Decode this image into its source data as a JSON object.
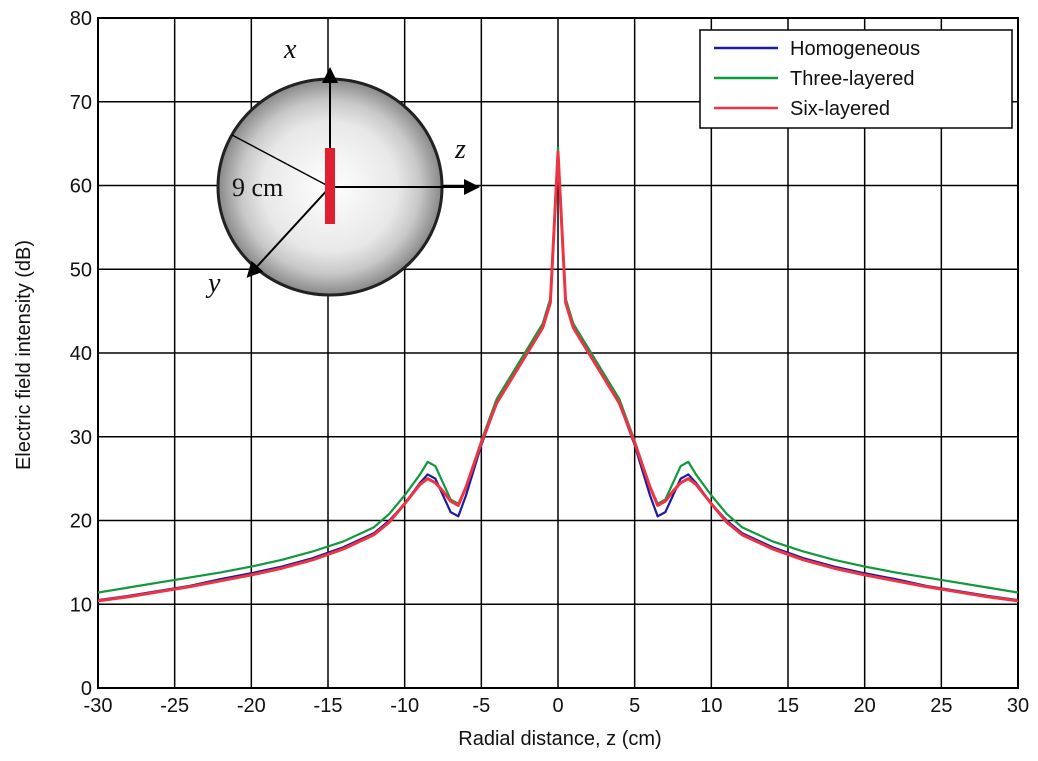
{
  "chart_data": {
    "type": "line",
    "xlabel": "Radial distance, z (cm)",
    "ylabel": "Electric field intensity (dB)",
    "x": [
      -30,
      -28,
      -26,
      -24,
      -22,
      -20,
      -18,
      -16,
      -14,
      -12,
      -11,
      -10,
      -9,
      -8.5,
      -8,
      -7.5,
      -7,
      -6.5,
      -6,
      -5,
      -4,
      -3,
      -2,
      -1,
      -0.5,
      0,
      0.5,
      1,
      2,
      3,
      4,
      5,
      6,
      6.5,
      7,
      7.5,
      8,
      8.5,
      9,
      10,
      11,
      12,
      14,
      16,
      18,
      20,
      22,
      24,
      26,
      28,
      30
    ],
    "series": [
      {
        "name": "Homogeneous",
        "color": "#1c1c9e",
        "values": [
          10.5,
          11,
          11.6,
          12.2,
          13,
          13.7,
          14.5,
          15.5,
          16.8,
          18.5,
          20,
          22,
          24.5,
          25.5,
          25,
          23,
          21,
          20.5,
          23,
          29,
          34,
          37,
          40,
          43,
          46,
          64,
          46,
          43,
          40,
          37,
          34,
          29,
          23,
          20.5,
          21,
          23,
          25,
          25.5,
          24.5,
          22,
          20,
          18.5,
          16.8,
          15.5,
          14.5,
          13.7,
          13,
          12.2,
          11.6,
          11,
          10.5
        ]
      },
      {
        "name": "Three-layered",
        "color": "#10993c",
        "values": [
          11.4,
          12,
          12.6,
          13.2,
          13.8,
          14.5,
          15.3,
          16.3,
          17.5,
          19.2,
          20.8,
          23,
          25.5,
          27,
          26.5,
          24.5,
          22.5,
          22,
          24,
          29.5,
          34.5,
          37.5,
          40.5,
          43.5,
          46.5,
          64.5,
          46.5,
          43.5,
          40.5,
          37.5,
          34.5,
          29.5,
          24,
          22,
          22.5,
          24.5,
          26.5,
          27,
          25.5,
          23,
          20.8,
          19.2,
          17.5,
          16.3,
          15.3,
          14.5,
          13.8,
          13.2,
          12.6,
          12,
          11.4
        ]
      },
      {
        "name": "Six-layered",
        "color": "#ee3344",
        "values": [
          10.4,
          10.9,
          11.5,
          12.1,
          12.8,
          13.5,
          14.3,
          15.3,
          16.6,
          18.3,
          19.8,
          22,
          24.3,
          25,
          24.5,
          23.5,
          22.3,
          21.8,
          24,
          29.3,
          34,
          37,
          40,
          43,
          46,
          64,
          46,
          43,
          40,
          37,
          34,
          29.3,
          24,
          21.8,
          22.3,
          23.5,
          24.5,
          25,
          24.3,
          22,
          19.8,
          18.3,
          16.6,
          15.3,
          14.3,
          13.5,
          12.8,
          12.1,
          11.5,
          10.9,
          10.4
        ]
      }
    ],
    "xlim": [
      -30,
      30
    ],
    "xticks": [
      -30,
      -25,
      -20,
      -15,
      -10,
      -5,
      0,
      5,
      10,
      15,
      20,
      25,
      30
    ],
    "ylim": [
      0,
      80
    ],
    "yticks": [
      0,
      10,
      20,
      30,
      40,
      50,
      60,
      70,
      80
    ],
    "grid": true,
    "legend": "upper right",
    "annotations": [
      "x",
      "z",
      "y",
      "9 cm"
    ]
  }
}
